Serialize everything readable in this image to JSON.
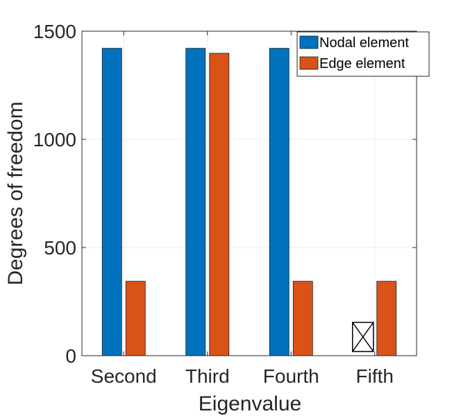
{
  "chart_data": {
    "type": "bar",
    "categories": [
      "Second",
      "Third",
      "Fourth",
      "Fifth"
    ],
    "series": [
      {
        "name": "Nodal element",
        "values": [
          1421,
          1421,
          1421,
          null
        ],
        "color": "#0072BD"
      },
      {
        "name": "Edge element",
        "values": [
          344,
          1398,
          344,
          344
        ],
        "color": "#D95319"
      }
    ],
    "xlabel": "Eigenvalue",
    "ylabel": "Degrees of freedom",
    "ylim": [
      0,
      1500
    ],
    "yticks": [
      0,
      500,
      1000,
      1500
    ],
    "grid": true,
    "legend_position": "top-right",
    "missing_marker": {
      "category": "Fifth",
      "series": "Nodal element",
      "icon": "box-with-x-icon"
    }
  }
}
